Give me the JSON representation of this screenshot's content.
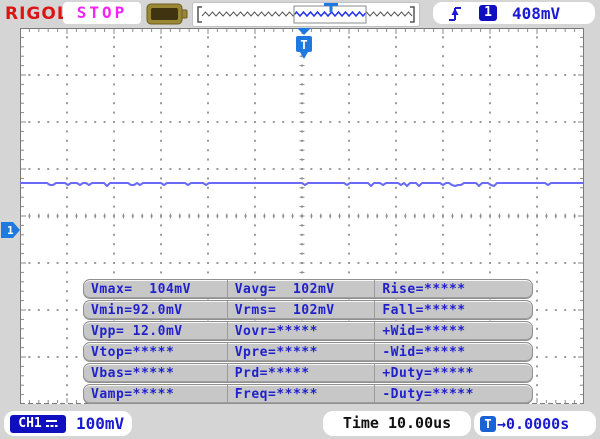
{
  "top_bar": {
    "logo": "RIGOL",
    "run_state": "STOP",
    "trigger": {
      "channel": "1",
      "level": "408mV"
    }
  },
  "screen": {
    "trigger_flag": "T",
    "channel_marker": "1"
  },
  "measurements": {
    "rows": [
      {
        "cells": [
          "Vmax=  104mV",
          "Vavg=  102mV",
          "Rise=*****"
        ]
      },
      {
        "cells": [
          "Vmin=92.0mV",
          "Vrms=  102mV",
          "Fall=*****"
        ]
      },
      {
        "cells": [
          "Vpp= 12.0mV",
          "Vovr=*****",
          "+Wid=*****"
        ]
      },
      {
        "cells": [
          "Vtop=*****",
          "Vpre=*****",
          "-Wid=*****"
        ]
      },
      {
        "cells": [
          "Vbas=*****",
          "Prd=*****",
          "+Duty=*****"
        ]
      },
      {
        "cells": [
          "Vamp=*****",
          "Freq=*****",
          "-Duty=*****"
        ]
      }
    ]
  },
  "bottom_bar": {
    "channel_badge": "CH1",
    "channel_scale": "100mV",
    "timebase": "Time 10.00us",
    "trigger_offset_badge": "T",
    "trigger_offset": "→0.0000s"
  },
  "waveform": {
    "type": "flat-noisy-trace",
    "vavg": "102mV",
    "vmin": "92.0mV",
    "vmax": "104mV",
    "vpp": "12.0mV",
    "vertical_scale": "100mV/div",
    "horizontal_scale": "10.00us/div"
  },
  "colors": {
    "text_blue": "#1a1ad0",
    "marker_blue": "#1f7ae0",
    "trace_blue": "#6a6af7",
    "logo_red": "#dc1414",
    "stop_magenta": "#f522f5",
    "panel_gray": "#c7c7c7",
    "chrome_gray": "#d5d5d5"
  }
}
